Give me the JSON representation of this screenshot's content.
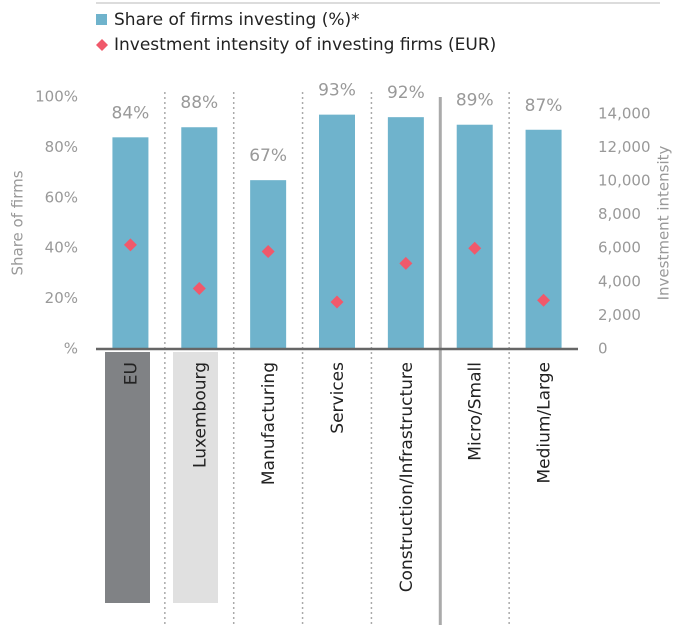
{
  "chart_data": {
    "type": "bar",
    "categories": [
      "EU",
      "Luxembourg",
      "Manufacturing",
      "Services",
      "Construction/Infrastructure",
      "Micro/Small",
      "Medium/Large"
    ],
    "series": [
      {
        "name": "Share of firms investing (%)*",
        "color": "#6fb3cc",
        "values": [
          84,
          88,
          67,
          93,
          92,
          89,
          87
        ],
        "value_labels": [
          "84%",
          "88%",
          "67%",
          "93%",
          "92%",
          "89%",
          "87%"
        ]
      },
      {
        "name": "Investment intensity of investing firms (EUR)",
        "color": "#f0596b",
        "axis": "y2",
        "marker": "diamond",
        "values": [
          6200,
          3600,
          5800,
          2800,
          5100,
          6000,
          2900
        ]
      }
    ],
    "ylabel": "Share of firms",
    "y2label": "Investment intensity",
    "ylim": [
      0,
      100
    ],
    "yticks": [
      {
        "value": 0,
        "label": "%"
      },
      {
        "value": 20,
        "label": "20%"
      },
      {
        "value": 40,
        "label": "40%"
      },
      {
        "value": 60,
        "label": "60%"
      },
      {
        "value": 80,
        "label": "80%"
      },
      {
        "value": 100,
        "label": "100%"
      }
    ],
    "y2lim": [
      0,
      15000
    ],
    "y2ticks": [
      0,
      {
        "value": 2000,
        "label": "2,000"
      },
      {
        "value": 4000,
        "label": "4,000"
      },
      {
        "value": 6000,
        "label": "6,000"
      },
      {
        "value": 8000,
        "label": "8,000"
      },
      {
        "value": 10000,
        "label": "10,000"
      },
      {
        "value": 12000,
        "label": "12,000"
      },
      {
        "value": 14000,
        "label": "14,000"
      }
    ],
    "legend": "top"
  }
}
